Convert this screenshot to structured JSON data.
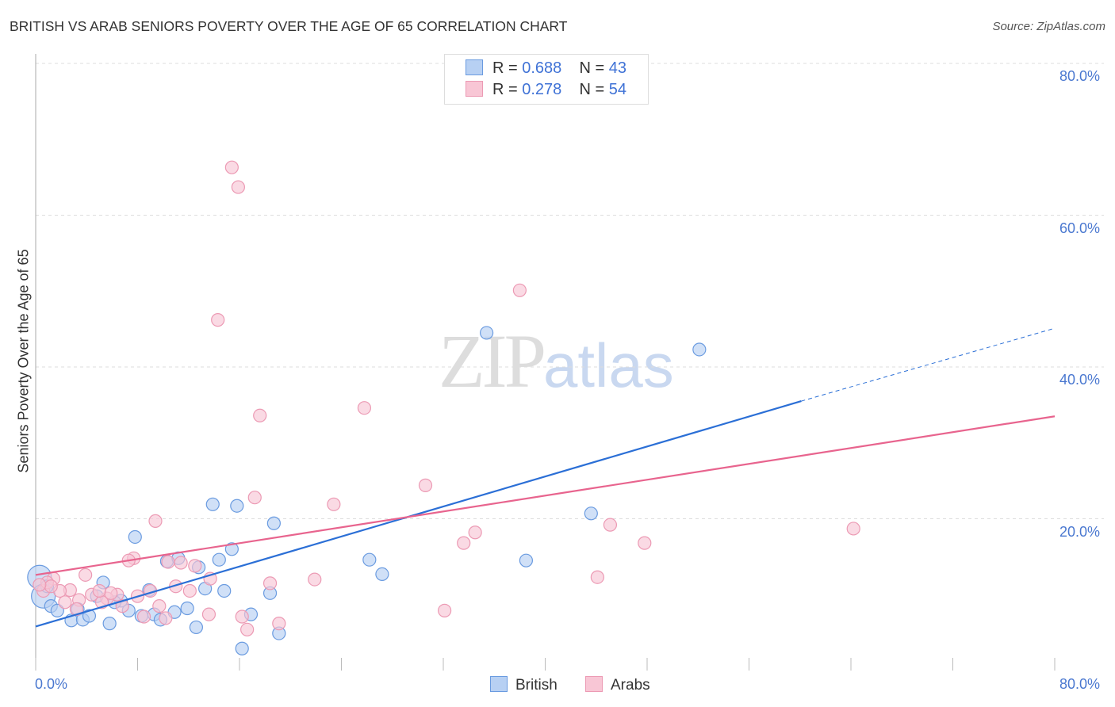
{
  "title": "BRITISH VS ARAB SENIORS POVERTY OVER THE AGE OF 65 CORRELATION CHART",
  "source": "Source: ZipAtlas.com",
  "watermark": {
    "a": "ZIP",
    "b": "atlas"
  },
  "legend": {
    "british": {
      "r_label": "R = ",
      "r": "0.688",
      "n_label": "N = ",
      "n": "43"
    },
    "arabs": {
      "r_label": "R = ",
      "r": "0.278",
      "n_label": "N = ",
      "n": "54"
    }
  },
  "chart_data": {
    "type": "scatter",
    "title": "BRITISH VS ARAB SENIORS POVERTY OVER THE AGE OF 65 CORRELATION CHART",
    "xlabel": "",
    "ylabel": "Seniors Poverty Over the Age of 65",
    "xlim": [
      0,
      80
    ],
    "ylim": [
      0,
      80
    ],
    "x_tick_labels": [
      "0.0%",
      "80.0%"
    ],
    "y_tick_labels": [
      {
        "v": 80,
        "t": "80.0%"
      },
      {
        "v": 60,
        "t": "60.0%"
      },
      {
        "v": 40,
        "t": "40.0%"
      },
      {
        "v": 20,
        "t": "20.0%"
      }
    ],
    "grid": true,
    "legend_position": "bottom",
    "series": [
      {
        "name": "British",
        "color": "#6a9be0",
        "fill": "#b7d0f3",
        "line_color": "#2b6fd6",
        "trend": [
          [
            0,
            5.8
          ],
          [
            60.1,
            35.5
          ],
          [
            80,
            45.1
          ]
        ],
        "points": [
          [
            0.3,
            12.3
          ],
          [
            0.6,
            9.8
          ],
          [
            1.2,
            8.5
          ],
          [
            1.7,
            7.9
          ],
          [
            2.8,
            6.6
          ],
          [
            3.3,
            8.1
          ],
          [
            3.7,
            6.7
          ],
          [
            4.2,
            7.2
          ],
          [
            4.8,
            9.8
          ],
          [
            5.3,
            11.6
          ],
          [
            5.8,
            6.2
          ],
          [
            6.7,
            9.2
          ],
          [
            7.3,
            7.9
          ],
          [
            7.8,
            17.6
          ],
          [
            8.3,
            7.2
          ],
          [
            8.9,
            10.6
          ],
          [
            9.3,
            7.4
          ],
          [
            9.8,
            6.7
          ],
          [
            10.3,
            14.4
          ],
          [
            10.9,
            7.7
          ],
          [
            11.2,
            14.8
          ],
          [
            11.9,
            8.2
          ],
          [
            12.6,
            5.7
          ],
          [
            12.8,
            13.6
          ],
          [
            13.3,
            10.8
          ],
          [
            13.9,
            21.9
          ],
          [
            14.4,
            14.6
          ],
          [
            14.8,
            10.5
          ],
          [
            15.4,
            16.0
          ],
          [
            15.8,
            21.7
          ],
          [
            16.2,
            2.9
          ],
          [
            16.9,
            7.4
          ],
          [
            18.4,
            10.2
          ],
          [
            18.7,
            19.4
          ],
          [
            19.1,
            4.9
          ],
          [
            26.2,
            14.6
          ],
          [
            27.2,
            12.7
          ],
          [
            35.4,
            44.5
          ],
          [
            38.5,
            14.5
          ],
          [
            43.6,
            20.7
          ],
          [
            52.1,
            42.3
          ],
          [
            0.9,
            11.1
          ],
          [
            6.2,
            9.0
          ]
        ]
      },
      {
        "name": "Arabs",
        "color": "#ec9ab4",
        "fill": "#f8c6d5",
        "line_color": "#e8648e",
        "trend": [
          [
            0,
            12.6
          ],
          [
            80,
            33.5
          ]
        ],
        "points": [
          [
            15.4,
            66.3
          ],
          [
            15.9,
            63.7
          ],
          [
            38.0,
            50.1
          ],
          [
            14.3,
            46.2
          ],
          [
            17.6,
            33.6
          ],
          [
            25.8,
            34.6
          ],
          [
            30.6,
            24.4
          ],
          [
            17.2,
            22.8
          ],
          [
            23.4,
            21.9
          ],
          [
            9.4,
            19.7
          ],
          [
            45.1,
            19.2
          ],
          [
            64.2,
            18.7
          ],
          [
            34.5,
            18.2
          ],
          [
            33.6,
            16.8
          ],
          [
            47.8,
            16.8
          ],
          [
            7.7,
            14.8
          ],
          [
            7.3,
            14.5
          ],
          [
            10.4,
            14.3
          ],
          [
            11.4,
            14.2
          ],
          [
            12.5,
            13.8
          ],
          [
            3.9,
            12.6
          ],
          [
            13.7,
            12.1
          ],
          [
            1.4,
            12.1
          ],
          [
            44.1,
            12.3
          ],
          [
            21.9,
            12.0
          ],
          [
            18.4,
            11.5
          ],
          [
            11.0,
            11.1
          ],
          [
            12.1,
            10.5
          ],
          [
            2.7,
            10.6
          ],
          [
            1.9,
            10.5
          ],
          [
            0.6,
            10.5
          ],
          [
            9.0,
            10.5
          ],
          [
            4.4,
            10.0
          ],
          [
            6.4,
            10.0
          ],
          [
            5.6,
            9.5
          ],
          [
            3.4,
            9.3
          ],
          [
            8.0,
            9.8
          ],
          [
            5.2,
            9.0
          ],
          [
            9.7,
            8.5
          ],
          [
            6.8,
            8.5
          ],
          [
            3.2,
            8.1
          ],
          [
            32.1,
            7.9
          ],
          [
            13.6,
            7.4
          ],
          [
            16.2,
            7.1
          ],
          [
            8.5,
            7.1
          ],
          [
            10.2,
            6.9
          ],
          [
            19.1,
            6.2
          ],
          [
            16.6,
            5.4
          ],
          [
            0.9,
            11.6
          ],
          [
            1.2,
            11.1
          ],
          [
            0.3,
            11.3
          ],
          [
            5.9,
            10.2
          ],
          [
            5.0,
            10.5
          ],
          [
            2.3,
            9.0
          ]
        ]
      }
    ]
  }
}
